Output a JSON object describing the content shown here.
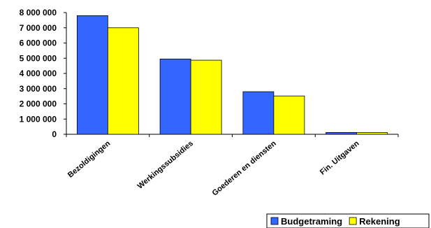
{
  "chart_data": {
    "type": "bar",
    "categories": [
      "Bezoldigingen",
      "Werkingssubsidies",
      "Goederen en diensten",
      "Fin. Uitgaven"
    ],
    "series": [
      {
        "name": "Budgetraming",
        "values": [
          7800000,
          4950000,
          2800000,
          120000
        ],
        "color": "#3366ff"
      },
      {
        "name": "Rekening",
        "values": [
          7000000,
          4870000,
          2520000,
          110000
        ],
        "color": "#ffff00"
      }
    ],
    "y_ticks": [
      "0",
      "1 000 000",
      "2 000 000",
      "3 000 000",
      "4 000 000",
      "5 000 000",
      "6 000 000",
      "7 000 000",
      "8 000 000"
    ],
    "ylim": [
      0,
      8000000
    ],
    "grid": false,
    "legend_position": "bottom-right"
  }
}
